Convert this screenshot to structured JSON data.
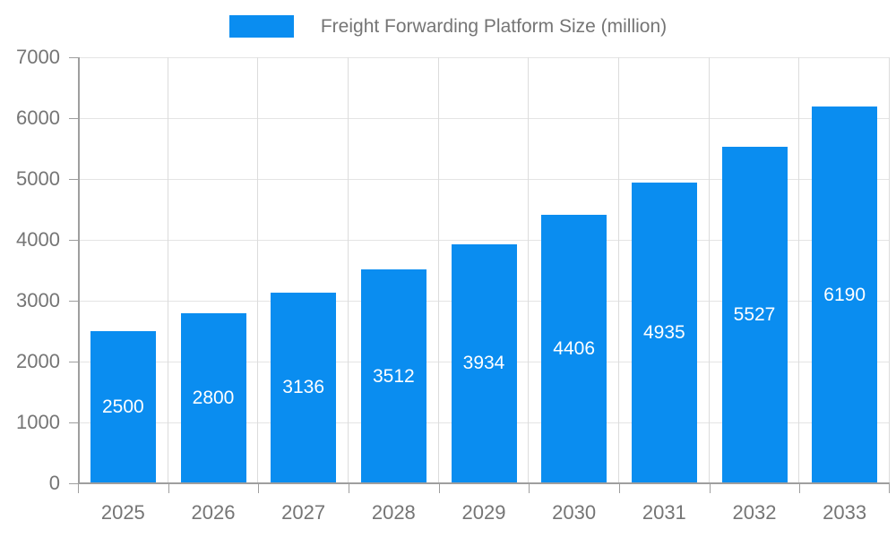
{
  "chart_data": {
    "type": "bar",
    "title": "Freight Forwarding Platform Size (million)",
    "categories": [
      "2025",
      "2026",
      "2027",
      "2028",
      "2029",
      "2030",
      "2031",
      "2032",
      "2033"
    ],
    "values": [
      2500,
      2800,
      3136,
      3512,
      3934,
      4406,
      4935,
      5527,
      6190
    ],
    "xlabel": "",
    "ylabel": "",
    "ylim": [
      0,
      7000
    ],
    "yticks": [
      0,
      1000,
      2000,
      3000,
      4000,
      5000,
      6000,
      7000
    ],
    "grid": true,
    "legend_position": "top-center",
    "colors": {
      "bar": "#0a8df0",
      "bar_label": "#ffffff",
      "axis_text": "#757575",
      "legend_text": "#757575",
      "axis_line": "#9e9e9e",
      "tick": "#9e9e9e",
      "grid_h": "#e4e4e4",
      "grid_v": "#dcdcdc",
      "background": "#ffffff"
    }
  }
}
